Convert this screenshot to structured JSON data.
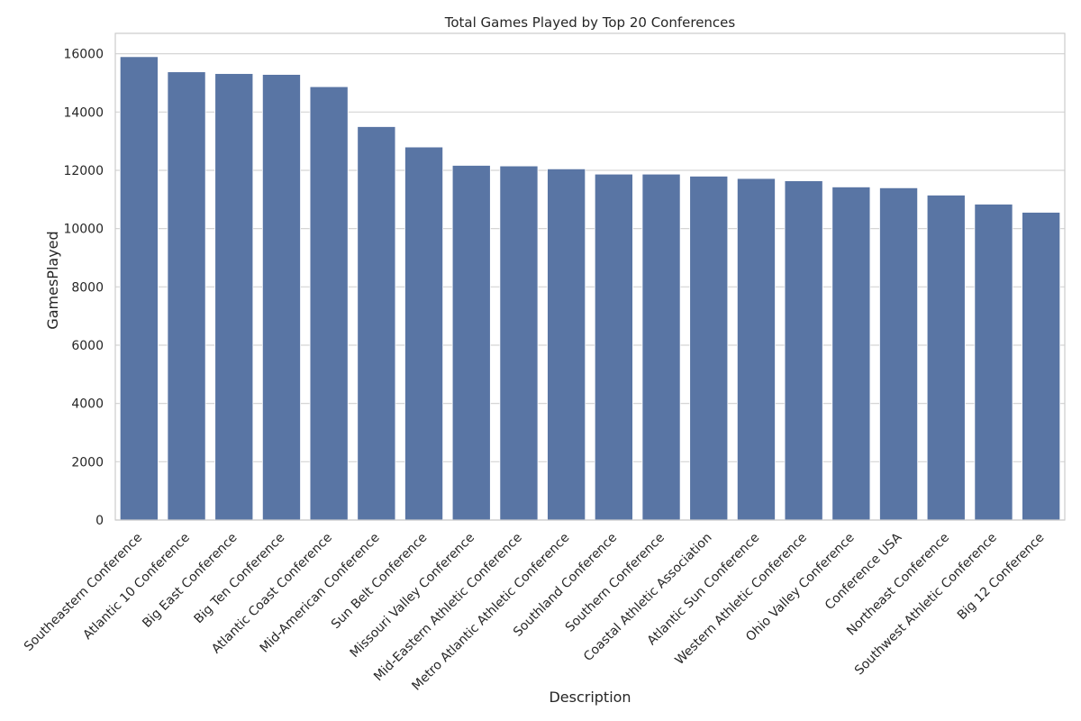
{
  "chart_data": {
    "type": "bar",
    "title": "Total Games Played by Top 20 Conferences",
    "xlabel": "Description",
    "ylabel": "GamesPlayed",
    "ylim": [
      0,
      16700
    ],
    "yticks": [
      0,
      2000,
      4000,
      6000,
      8000,
      10000,
      12000,
      14000,
      16000
    ],
    "grid": "horizontal",
    "bar_color": "#5975a4",
    "categories": [
      "Southeastern Conference",
      "Atlantic 10 Conference",
      "Big East Conference",
      "Big Ten Conference",
      "Atlantic Coast Conference",
      "Mid-American Conference",
      "Sun Belt Conference",
      "Missouri Valley Conference",
      "Mid-Eastern Athletic Conference",
      "Metro Atlantic Athletic Conference",
      "Southland Conference",
      "Southern Conference",
      "Coastal Athletic Association",
      "Atlantic Sun Conference",
      "Western Athletic Conference",
      "Ohio Valley Conference",
      "Conference USA",
      "Northeast Conference",
      "Southwest Athletic Conference",
      "Big 12 Conference"
    ],
    "values": [
      15900,
      15380,
      15320,
      15290,
      14870,
      13500,
      12800,
      12170,
      12150,
      12050,
      11870,
      11870,
      11800,
      11720,
      11640,
      11430,
      11400,
      11150,
      10840,
      10560
    ]
  }
}
